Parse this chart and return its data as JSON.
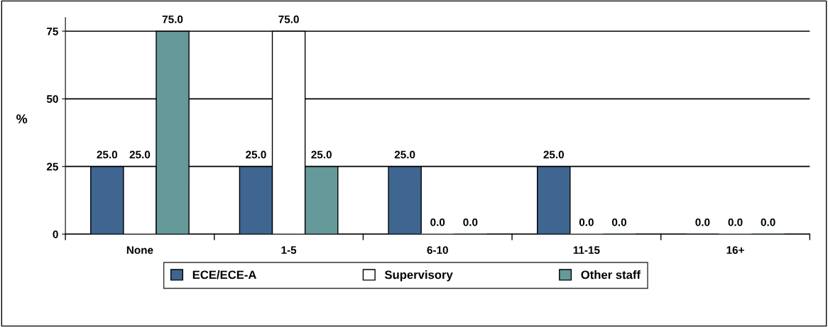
{
  "chart_data": {
    "type": "bar",
    "ylabel": "%",
    "categories": [
      "None",
      "1-5",
      "6-10",
      "11-15",
      "16+"
    ],
    "series": [
      {
        "name": "ECE/ECE-A",
        "color": "#3f6690",
        "values": [
          25,
          25,
          25,
          25,
          0
        ],
        "value_labels": [
          "25.0",
          "25.0",
          "25.0",
          "25.0",
          "0.0"
        ]
      },
      {
        "name": "Supervisory",
        "color": "#ffffff",
        "values": [
          25,
          75,
          0,
          0,
          0
        ],
        "value_labels": [
          "25.0",
          "75.0",
          "0.0",
          "0.0",
          "0.0"
        ]
      },
      {
        "name": "Other staff",
        "color": "#669999",
        "values": [
          75,
          25,
          0,
          0,
          0
        ],
        "value_labels": [
          "75.0",
          "25.0",
          "0.0",
          "0.0",
          "0.0"
        ]
      }
    ],
    "ylim": [
      0,
      80
    ],
    "yticks": [
      0,
      25,
      50,
      75
    ],
    "grid": "y",
    "legend": "bottom"
  }
}
